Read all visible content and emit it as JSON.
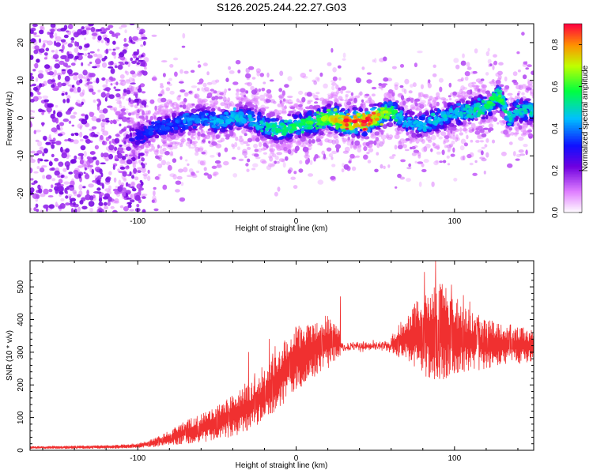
{
  "title": "S126.2025.244.22.27.G03",
  "chart_data": [
    {
      "type": "heatmap",
      "name": "spectrogram",
      "xlabel": "Height of straight line (km)",
      "ylabel": "Frequency (Hz)",
      "xlim": [
        -168,
        150
      ],
      "ylim": [
        -25,
        25
      ],
      "xticks": [
        -100,
        0,
        100
      ],
      "yticks": [
        -20,
        -10,
        0,
        10,
        20
      ],
      "colorbar": {
        "label": "Normalized spectral amplitude",
        "range": [
          0.0,
          0.9
        ],
        "ticks": [
          "0.0",
          "0.2",
          "0.4",
          "0.6",
          "0.8"
        ],
        "stops": [
          {
            "v": 0.0,
            "color": "#ffffff"
          },
          {
            "v": 0.1,
            "color": "#e080ff"
          },
          {
            "v": 0.22,
            "color": "#7000e0"
          },
          {
            "v": 0.32,
            "color": "#1010ff"
          },
          {
            "v": 0.45,
            "color": "#00c0ff"
          },
          {
            "v": 0.58,
            "color": "#00ff40"
          },
          {
            "v": 0.7,
            "color": "#c0ff00"
          },
          {
            "v": 0.8,
            "color": "#ff9000"
          },
          {
            "v": 0.9,
            "color": "#ff0040"
          }
        ]
      },
      "ridge": {
        "x": [
          -100,
          -90,
          -80,
          -70,
          -60,
          -50,
          -40,
          -30,
          -20,
          -10,
          0,
          10,
          20,
          25,
          30,
          40,
          45,
          50,
          60,
          70,
          80,
          90,
          100,
          110,
          120,
          128,
          135,
          140,
          150
        ],
        "y": [
          -5,
          -3,
          -2,
          -1,
          0,
          -1,
          0,
          0,
          -2,
          -3,
          -2,
          -1,
          0,
          0,
          -1,
          -1,
          -1,
          0,
          2,
          -1,
          -2,
          0,
          1,
          2,
          3,
          6,
          0,
          2,
          2
        ],
        "amp": [
          0.3,
          0.35,
          0.35,
          0.4,
          0.4,
          0.45,
          0.45,
          0.45,
          0.5,
          0.55,
          0.55,
          0.6,
          0.65,
          0.75,
          0.85,
          0.85,
          0.9,
          0.8,
          0.6,
          0.45,
          0.45,
          0.5,
          0.45,
          0.5,
          0.55,
          0.6,
          0.5,
          0.5,
          0.5
        ]
      }
    },
    {
      "type": "line",
      "name": "snr",
      "xlabel": "Height of straight line (km)",
      "ylabel": "SNR (10 * v/v)",
      "xlim": [
        -168,
        150
      ],
      "ylim": [
        0,
        580
      ],
      "xticks": [
        -100,
        0,
        100
      ],
      "yticks": [
        0,
        100,
        200,
        300,
        400,
        500
      ],
      "color": "#f03030",
      "envelope": {
        "x": [
          -168,
          -120,
          -100,
          -90,
          -80,
          -70,
          -60,
          -50,
          -40,
          -30,
          -20,
          -10,
          0,
          10,
          20,
          30,
          40,
          50,
          60,
          70,
          80,
          90,
          100,
          110,
          120,
          130,
          140,
          150
        ],
        "lower": [
          5,
          5,
          8,
          10,
          15,
          20,
          25,
          30,
          40,
          60,
          90,
          130,
          180,
          220,
          250,
          300,
          310,
          305,
          300,
          270,
          230,
          210,
          230,
          240,
          250,
          260,
          265,
          270
        ],
        "upper": [
          12,
          15,
          20,
          35,
          60,
          90,
          110,
          140,
          170,
          200,
          250,
          320,
          380,
          400,
          420,
          350,
          330,
          335,
          350,
          420,
          480,
          520,
          470,
          430,
          400,
          390,
          380,
          370
        ]
      },
      "peaks": [
        {
          "x": 88,
          "y": 578
        },
        {
          "x": 81,
          "y": 545
        },
        {
          "x": 28,
          "y": 470
        },
        {
          "x": -17,
          "y": 340
        },
        {
          "x": -30,
          "y": 300
        }
      ]
    }
  ]
}
